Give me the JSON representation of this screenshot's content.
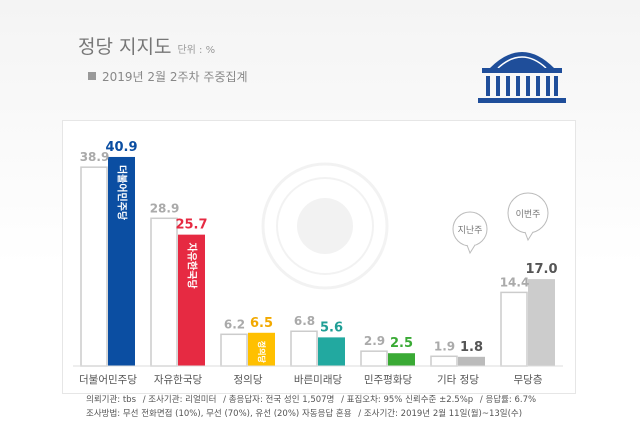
{
  "header": {
    "title": "정당 지지도",
    "unit": "단위 : %",
    "subtitle": "2019년 2월 2주차 주중집계"
  },
  "colors": {
    "prev_bar": "#ffffff",
    "prev_border": "#cccccc",
    "prev_text": "#aaaaaa",
    "axis": "#dddddd",
    "category_text": "#555555"
  },
  "chart_data": {
    "type": "bar",
    "categories": [
      "더불어민주당",
      "자유한국당",
      "정의당",
      "바른미래당",
      "민주평화당",
      "기타 정당",
      "무당층"
    ],
    "series": [
      {
        "values": [
          38.9,
          28.9,
          6.2,
          6.8,
          2.9,
          1.9,
          14.4
        ]
      },
      {
        "values": [
          40.9,
          25.7,
          6.5,
          5.6,
          2.5,
          1.8,
          17.0
        ]
      }
    ],
    "current_colors": [
      "#0b4ea2",
      "#e62a42",
      "#ffc000",
      "#22a9a0",
      "#3aaa35",
      "#bbbbbb",
      "#cccccc"
    ],
    "value_text_colors": [
      "#0b4ea2",
      "#e62a42",
      "#f2a900",
      "#1f9e95",
      "#3aaa35",
      "#555555",
      "#555555"
    ],
    "bar_logos": [
      "더불어민주당",
      "자유한국당",
      "정의당",
      "",
      "",
      "",
      ""
    ],
    "speech_bubbles": [
      "지난주",
      "이번주"
    ],
    "ylim": [
      0,
      45
    ],
    "grid": false,
    "legend": "none"
  },
  "footer": {
    "lines": [
      [
        "의뢰기관: tbs",
        "/ 조사기관: 리얼미터",
        "/ 총응답자: 전국 성인 1,507명",
        "/ 표집오차: 95% 신뢰수준 ±2.5%p",
        "/ 응답률: 6.7%"
      ],
      [
        "조사방법: 무선 전화면접 (10%), 무선 (70%), 유선 (20%) 자동응답 혼용",
        "/ 조사기간: 2019년 2월 11일(월)~13일(수)"
      ]
    ]
  }
}
